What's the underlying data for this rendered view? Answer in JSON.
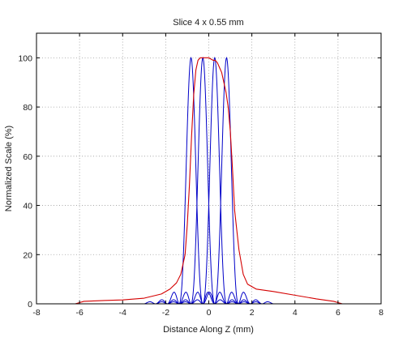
{
  "chart_data": {
    "type": "line",
    "title": "Slice 4 x 0.55 mm",
    "xlabel": "Distance Along Z (mm)",
    "ylabel": "Normalized Scale (%)",
    "xlim": [
      -8,
      8
    ],
    "ylim": [
      0,
      110
    ],
    "x_ticks": [
      -8,
      -6,
      -4,
      -2,
      0,
      2,
      4,
      6,
      8
    ],
    "y_ticks": [
      0,
      20,
      40,
      60,
      80,
      100
    ],
    "x_tick_labels": [
      "-8",
      "-6",
      "-4",
      "-2",
      "0",
      "2",
      "4",
      "6",
      "8"
    ],
    "y_tick_labels": [
      "0",
      "20",
      "40",
      "60",
      "80",
      "100"
    ],
    "grid": true,
    "legend": "none",
    "colors": {
      "envelope": "#d40000",
      "slices": "#0000c8"
    },
    "envelope": {
      "x": [
        -8,
        -6.2,
        -6.0,
        -5.8,
        -5,
        -4,
        -3,
        -2.2,
        -1.8,
        -1.5,
        -1.3,
        -1.1,
        -1.0,
        -0.9,
        -0.8,
        -0.7,
        -0.6,
        -0.5,
        -0.4,
        -0.3,
        -0.2,
        0.0,
        0.2,
        0.3,
        0.4,
        0.5,
        0.6,
        0.7,
        0.8,
        0.9,
        1.0,
        1.1,
        1.2,
        1.4,
        1.6,
        1.8,
        2.2,
        3,
        4,
        5,
        5.8,
        6.0,
        6.2,
        8
      ],
      "y": [
        0,
        0,
        0.5,
        1.0,
        1.3,
        1.6,
        2.3,
        4.0,
        6.0,
        8.5,
        12,
        20,
        32,
        48,
        68,
        85,
        95,
        99,
        100,
        100,
        100,
        100,
        99,
        99,
        98,
        96,
        94,
        90,
        86,
        80,
        70,
        55,
        38,
        22,
        12,
        8,
        6,
        5,
        3.5,
        2,
        1,
        0.5,
        0,
        0
      ]
    },
    "slices": [
      {
        "center": -0.825
      },
      {
        "center": -0.275
      },
      {
        "center": 0.275
      },
      {
        "center": 0.825
      }
    ],
    "slice_peak": 100,
    "slice_width": 0.55
  }
}
